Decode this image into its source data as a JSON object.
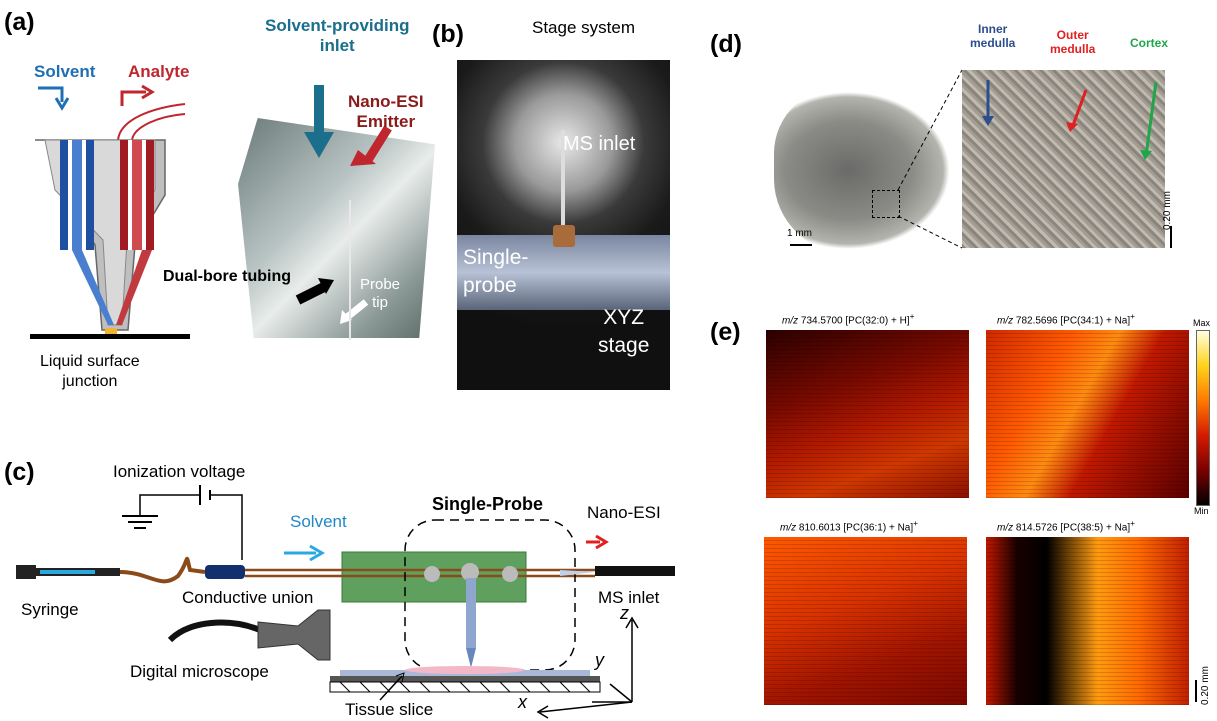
{
  "panels": {
    "a": "(a)",
    "b": "(b)",
    "c": "(c)",
    "d": "(d)",
    "e": "(e)"
  },
  "panel_a": {
    "solvent": "Solvent",
    "analyte": "Analyte",
    "liquid_surface_junction": "Liquid surface\njunction",
    "solvent_inlet": "Solvent-providing\ninlet",
    "nano_esi_emitter": "Nano-ESI\nEmitter",
    "dual_bore": "Dual-bore tubing",
    "probe_tip": "Probe\ntip"
  },
  "panel_b": {
    "stage_system": "Stage system",
    "ms_inlet": "MS inlet",
    "single_probe": "Single-\nprobe",
    "xyz_stage": "XYZ\nstage"
  },
  "panel_c": {
    "ionization_voltage": "Ionization voltage",
    "solvent": "Solvent",
    "single_probe": "Single-Probe",
    "nano_esi": "Nano-ESI",
    "syringe": "Syringe",
    "conductive_union": "Conductive union",
    "ms_inlet": "MS inlet",
    "digital_microscope": "Digital microscope",
    "tissue_slice": "Tissue slice",
    "axis_x": "x",
    "axis_y": "y",
    "axis_z": "z"
  },
  "panel_d": {
    "inner_medulla": "Inner\nmedulla",
    "outer_medulla": "Outer\nmedulla",
    "cortex": "Cortex",
    "scale_1mm": "1 mm",
    "scale_020": "0.20 mm"
  },
  "panel_e": {
    "images": [
      {
        "mz": "m/z",
        "title": " 734.5700 [PC(32:0) + H]",
        "sup": "+"
      },
      {
        "mz": "m/z",
        "title": " 782.5696 [PC(34:1) + Na]",
        "sup": "+"
      },
      {
        "mz": "m/z",
        "title": " 810.6013 [PC(36:1) + Na]",
        "sup": "+"
      },
      {
        "mz": "m/z",
        "title": " 814.5726 [PC(38:5) + Na]",
        "sup": "+"
      }
    ],
    "cbar_max": "Max",
    "cbar_min": "Min",
    "scale_020": "0.20 mm"
  },
  "colors": {
    "solvent_blue": "#1f6fb5",
    "analyte_red": "#c0262d",
    "inlet_teal": "#1b6e8c",
    "cortex_green": "#1fa64a",
    "medulla_blue": "#2c4f8c"
  }
}
